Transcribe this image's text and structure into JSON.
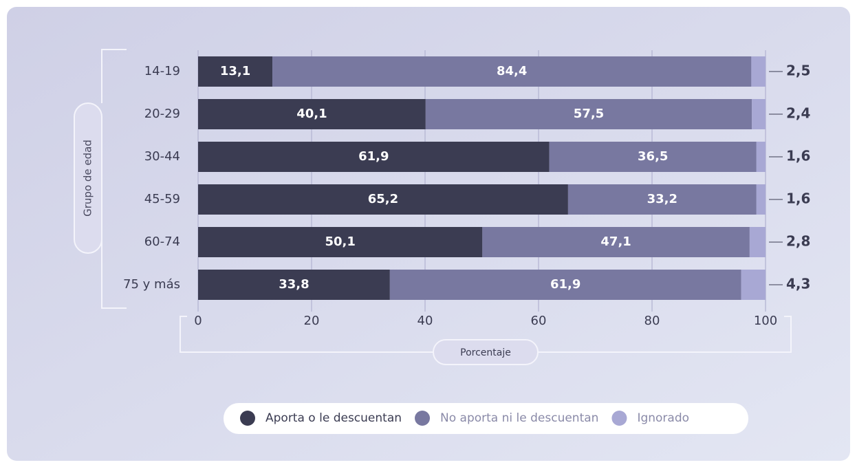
{
  "chart_data": {
    "type": "bar",
    "orientation": "horizontal",
    "stacked": true,
    "y_axis_label": "Grupo de edad",
    "x_axis_label": "Porcentaje",
    "categories": [
      "14-19",
      "20-29",
      "30-44",
      "45-59",
      "60-74",
      "75 y más"
    ],
    "series": [
      {
        "name": "Aporta o le descuentan",
        "color": "#3b3c52",
        "values": [
          13.1,
          40.1,
          61.9,
          65.2,
          50.1,
          33.8
        ],
        "value_labels": [
          "13,1",
          "40,1",
          "61,9",
          "65,2",
          "50,1",
          "33,8"
        ]
      },
      {
        "name": "No aporta ni le descuentan",
        "color": "#7878a0",
        "values": [
          84.4,
          57.5,
          36.5,
          33.2,
          47.1,
          61.9
        ],
        "value_labels": [
          "84,4",
          "57,5",
          "36,5",
          "33,2",
          "47,1",
          "61,9"
        ]
      },
      {
        "name": "Ignorado",
        "color": "#a8a8d4",
        "values": [
          2.5,
          2.4,
          1.6,
          1.6,
          2.8,
          4.3
        ],
        "value_labels": [
          "2,5",
          "2,4",
          "1,6",
          "1,6",
          "2,8",
          "4,3"
        ]
      }
    ],
    "xlim": [
      0,
      100
    ],
    "xticks": [
      0,
      20,
      40,
      60,
      80,
      100
    ],
    "grid": true,
    "legend": "bottom"
  }
}
